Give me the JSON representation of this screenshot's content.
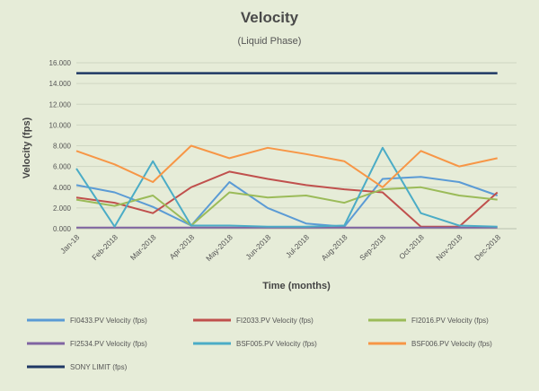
{
  "chart_data": {
    "type": "line",
    "title": "Velocity",
    "subtitle": "(Liquid Phase)",
    "xlabel": "Time (months)",
    "ylabel": "Velocity (fps)",
    "ylim": [
      0,
      16
    ],
    "yticks": [
      "0.000",
      "2.000",
      "4.000",
      "6.000",
      "8.000",
      "10.000",
      "12.000",
      "14.000",
      "16.000"
    ],
    "x_categories": [
      "Jan-18",
      "Feb-2018",
      "Mar-2018",
      "Apr-2018",
      "May-2018",
      "Jun-2018",
      "Jul-2018",
      "Aug-2018",
      "Sep-2018",
      "Oct-2018",
      "Nov-2018",
      "Dec-2018"
    ],
    "grid": true,
    "legend_position": "bottom",
    "series": [
      {
        "name": "FI0433.PV Velocity (fps)",
        "color": "#5b9bd5",
        "values": [
          4.2,
          3.5,
          2.1,
          0.3,
          4.5,
          2.0,
          0.5,
          0.2,
          4.8,
          5.0,
          4.5,
          3.2
        ]
      },
      {
        "name": "FI2033.PV Velocity (fps)",
        "color": "#c0504d",
        "values": [
          3.0,
          2.5,
          1.5,
          4.0,
          5.5,
          4.8,
          4.2,
          3.8,
          3.5,
          0.2,
          0.2,
          3.5
        ]
      },
      {
        "name": "FI2016.PV Velocity (fps)",
        "color": "#9bbb59",
        "values": [
          2.8,
          2.2,
          3.2,
          0.3,
          3.5,
          3.0,
          3.2,
          2.5,
          3.8,
          4.0,
          3.2,
          2.8
        ]
      },
      {
        "name": "FI2534.PV Velocity (fps)",
        "color": "#8064a2",
        "values": [
          0.1,
          0.1,
          0.1,
          0.1,
          0.1,
          0.1,
          0.1,
          0.1,
          0.1,
          0.1,
          0.1,
          0.1
        ]
      },
      {
        "name": "BSF005.PV Velocity (fps)",
        "color": "#4bacc6",
        "values": [
          5.8,
          0.2,
          6.5,
          0.3,
          0.3,
          0.2,
          0.2,
          0.3,
          7.8,
          1.5,
          0.3,
          0.2
        ]
      },
      {
        "name": "BSF006.PV Velocity (fps)",
        "color": "#f79646",
        "values": [
          7.5,
          6.2,
          4.5,
          8.0,
          6.8,
          7.8,
          7.2,
          6.5,
          4.0,
          7.5,
          6.0,
          6.8
        ]
      },
      {
        "name": "SONY LIMIT (fps)",
        "color": "#1f3864",
        "values": [
          15.0,
          15.0,
          15.0,
          15.0,
          15.0,
          15.0,
          15.0,
          15.0,
          15.0,
          15.0,
          15.0,
          15.0
        ]
      }
    ]
  }
}
